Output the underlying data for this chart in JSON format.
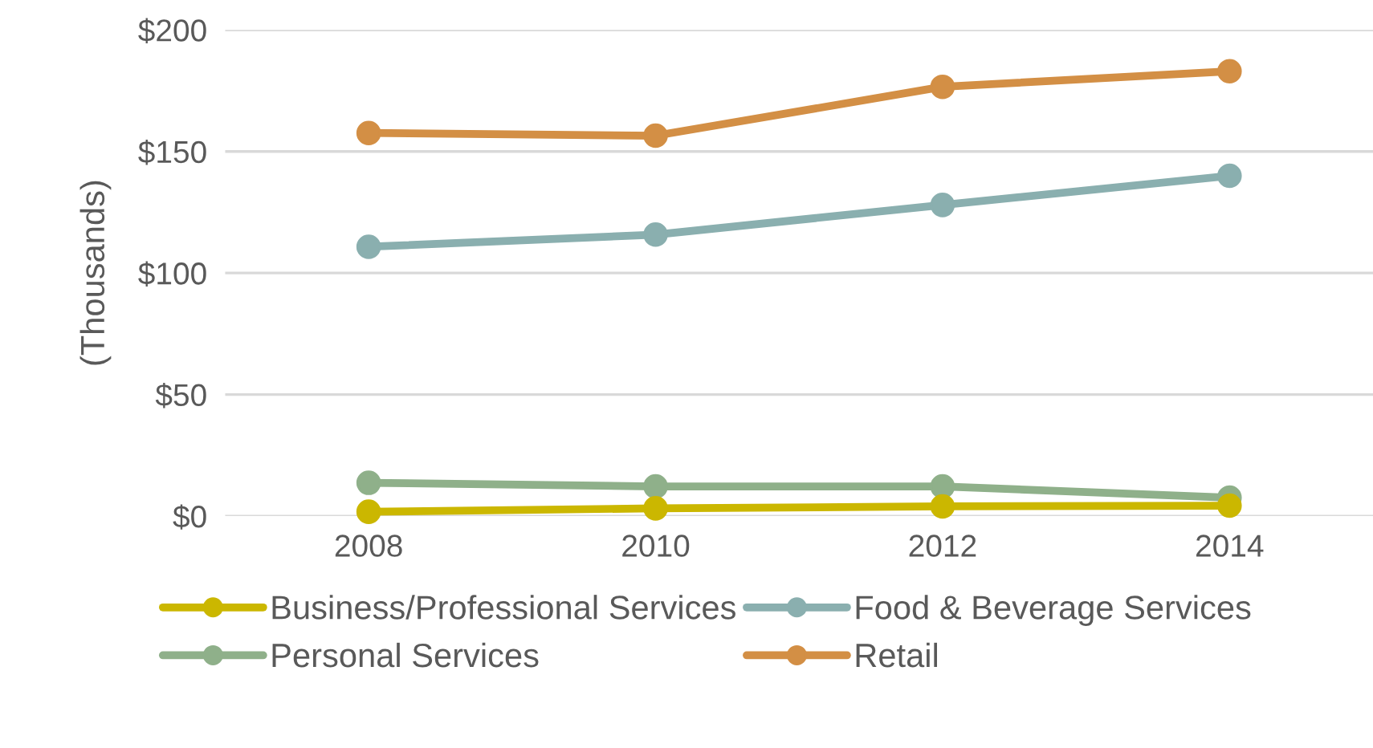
{
  "chart_data": {
    "type": "line",
    "ylabel": "(Thousands)",
    "x": [
      2008,
      2010,
      2012,
      2014
    ],
    "xlim": [
      2007,
      2015
    ],
    "xticks": [
      2008,
      2010,
      2012,
      2014
    ],
    "ylim": [
      0,
      200
    ],
    "yticks": [
      {
        "value": 0,
        "label": "$0"
      },
      {
        "value": 50,
        "label": "$50"
      },
      {
        "value": 100,
        "label": "$100"
      },
      {
        "value": 150,
        "label": "$150"
      },
      {
        "value": 200,
        "label": "$200"
      }
    ],
    "grid": "y",
    "legend": "bottom",
    "marker": "circle",
    "line_style": "solid",
    "series": [
      {
        "name": "Business/Professional Services",
        "color": "#cbb700",
        "values": [
          1.8,
          3.2,
          4,
          4.3
        ]
      },
      {
        "name": "Food & Beverage Services",
        "color": "#8aafaf",
        "values": [
          110.8,
          115.8,
          128,
          140
        ]
      },
      {
        "name": "Personal Services",
        "color": "#8fb08a",
        "values": [
          13.7,
          12.2,
          12.2,
          7.6
        ]
      },
      {
        "name": "Retail",
        "color": "#d38f45",
        "values": [
          157.6,
          156.5,
          176.6,
          183
        ]
      }
    ]
  }
}
